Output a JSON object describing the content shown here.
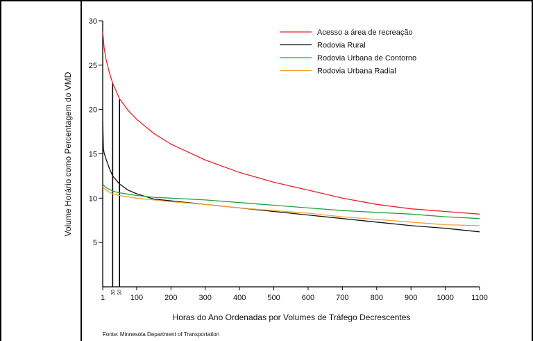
{
  "chart_data": {
    "type": "line",
    "xlabel": "Horas do Ano Ordenadas por Volumes de Tráfego Decrescentes",
    "ylabel": "Volume Horário como Percentagem do VMD",
    "xlim": [
      1,
      1100
    ],
    "ylim": [
      0,
      30
    ],
    "x_ticks": [
      1,
      100,
      200,
      300,
      400,
      500,
      600,
      700,
      800,
      900,
      1000,
      1100
    ],
    "y_ticks": [
      5,
      10,
      15,
      20,
      25,
      30
    ],
    "marker_lines": [
      {
        "x": 30,
        "label": "30",
        "y_top": 23
      },
      {
        "x": 50,
        "label": "50",
        "y_top": 21.2
      }
    ],
    "series": [
      {
        "name": "Acesso a área de recreação",
        "color": "#e8202a",
        "x": [
          1,
          5,
          10,
          20,
          30,
          50,
          75,
          100,
          150,
          200,
          300,
          400,
          500,
          600,
          700,
          800,
          900,
          1000,
          1100
        ],
        "y": [
          28.8,
          27.0,
          25.8,
          24.2,
          23.0,
          21.2,
          19.9,
          18.9,
          17.3,
          16.1,
          14.3,
          12.9,
          11.8,
          10.9,
          10.0,
          9.3,
          8.8,
          8.5,
          8.2
        ]
      },
      {
        "name": "Rodovia Rural",
        "color": "#111111",
        "x": [
          1,
          3,
          5,
          10,
          20,
          30,
          50,
          75,
          100,
          150,
          200,
          300,
          400,
          500,
          600,
          700,
          800,
          900,
          1000,
          1100
        ],
        "y": [
          18.7,
          15.6,
          15.1,
          14.5,
          13.4,
          12.5,
          11.6,
          10.9,
          10.5,
          9.9,
          9.7,
          9.3,
          8.9,
          8.5,
          8.1,
          7.7,
          7.3,
          6.9,
          6.6,
          6.2
        ]
      },
      {
        "name": "Rodovia Urbana de Contorno",
        "color": "#22a33a",
        "x": [
          1,
          10,
          30,
          50,
          100,
          150,
          200,
          300,
          400,
          500,
          600,
          700,
          800,
          900,
          1000,
          1100
        ],
        "y": [
          11.6,
          11.2,
          10.8,
          10.6,
          10.3,
          10.1,
          10.0,
          9.8,
          9.5,
          9.2,
          8.9,
          8.6,
          8.4,
          8.2,
          7.9,
          7.7
        ]
      },
      {
        "name": "Rodovia Urbana Radial",
        "color": "#f5a030",
        "x": [
          1,
          10,
          30,
          50,
          100,
          150,
          200,
          300,
          400,
          500,
          600,
          700,
          800,
          900,
          1000,
          1100
        ],
        "y": [
          11.3,
          10.9,
          10.5,
          10.3,
          10.0,
          9.8,
          9.6,
          9.3,
          8.9,
          8.6,
          8.3,
          7.9,
          7.6,
          7.3,
          7.0,
          6.9
        ]
      }
    ],
    "legend_position": "top-right",
    "grid": false
  },
  "source_note": "Fonte: Minnesota Department of Transportation"
}
